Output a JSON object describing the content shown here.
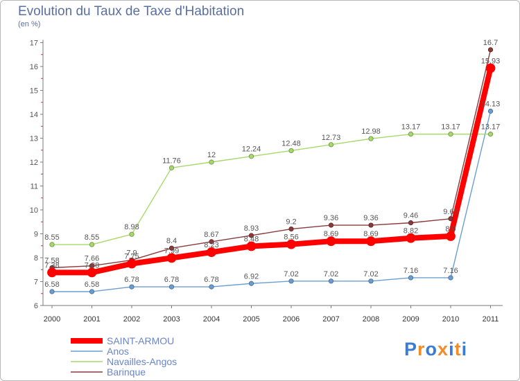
{
  "chart_data": {
    "type": "line",
    "title": "Evolution du Taux de Taxe d'Habitation",
    "subtitle": "(en %)",
    "categories": [
      "2000",
      "2001",
      "2002",
      "2003",
      "2004",
      "2005",
      "2006",
      "2007",
      "2008",
      "2009",
      "2010",
      "2011"
    ],
    "ylim": [
      6,
      17
    ],
    "yticks": [
      6,
      7,
      8,
      9,
      10,
      11,
      12,
      13,
      14,
      15,
      16,
      17
    ],
    "grid": false,
    "legend_position": "bottom-left",
    "series": [
      {
        "name": "SAINT-ARMOU",
        "color": "#ff0000",
        "values": [
          7.38,
          7.38,
          7.75,
          7.99,
          8.23,
          8.48,
          8.56,
          8.69,
          8.69,
          8.82,
          8.9,
          15.93
        ]
      },
      {
        "name": "Anos",
        "color": "#6a9ed0",
        "values": [
          6.58,
          6.58,
          6.78,
          6.78,
          6.78,
          6.92,
          7.02,
          7.02,
          7.02,
          7.16,
          7.16,
          14.13
        ]
      },
      {
        "name": "Navailles-Angos",
        "color": "#a6d96a",
        "values": [
          8.55,
          8.55,
          8.98,
          11.76,
          12,
          12.24,
          12.48,
          12.73,
          12.98,
          13.17,
          13.17,
          13.17
        ]
      },
      {
        "name": "Barinque",
        "color": "#8b3a3a",
        "values": [
          7.58,
          7.66,
          7.9,
          8.4,
          8.67,
          8.93,
          9.2,
          9.36,
          9.36,
          9.46,
          9.63,
          16.7
        ]
      }
    ]
  },
  "branding": {
    "text": "Proxiti",
    "colors": [
      "#3a7bd5",
      "#f28c28",
      "#3a7bd5",
      "#f28c28",
      "#3a7bd5",
      "#f28c28",
      "#3a7bd5"
    ]
  }
}
